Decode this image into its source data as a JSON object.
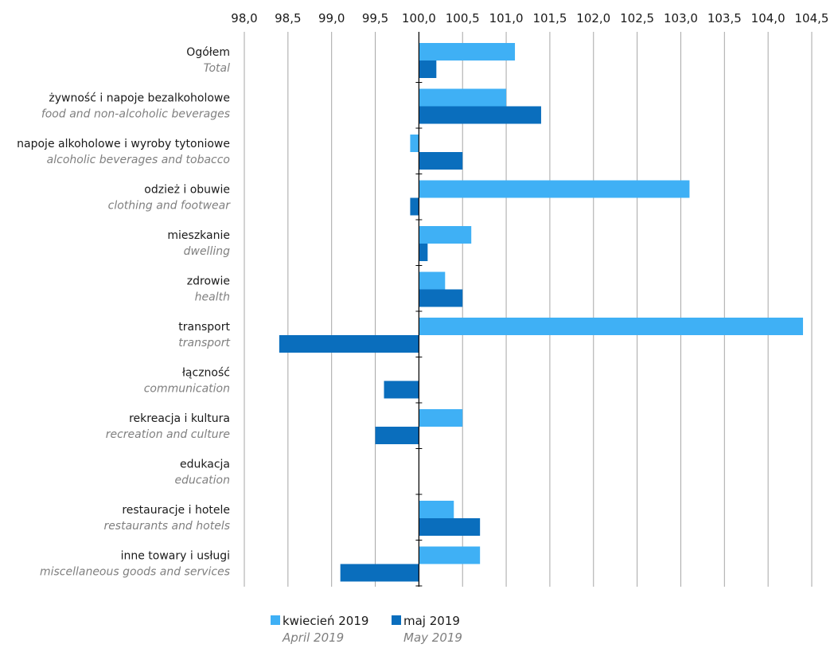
{
  "chart_data": {
    "type": "bar",
    "orientation": "horizontal",
    "baseline": 100,
    "xlim": [
      98.0,
      104.5
    ],
    "ticks": [
      "98,0",
      "98,5",
      "99,0",
      "99,5",
      "100,0",
      "100,5",
      "101,0",
      "101,5",
      "102,0",
      "102,5",
      "103,0",
      "103,5",
      "104,0",
      "104,5"
    ],
    "tick_values": [
      98.0,
      98.5,
      99.0,
      99.5,
      100.0,
      100.5,
      101.0,
      101.5,
      102.0,
      102.5,
      103.0,
      103.5,
      104.0,
      104.5
    ],
    "grid": true,
    "categories": [
      {
        "pl": "Ogółem",
        "en": "Total"
      },
      {
        "pl": "żywność i napoje bezalkoholowe",
        "en": "food and non-alcoholic beverages"
      },
      {
        "pl": "napoje alkoholowe i wyroby tytoniowe",
        "en": "alcoholic beverages and tobacco"
      },
      {
        "pl": "odzież i obuwie",
        "en": "clothing and footwear"
      },
      {
        "pl": "mieszkanie",
        "en": "dwelling"
      },
      {
        "pl": "zdrowie",
        "en": "health"
      },
      {
        "pl": "transport",
        "en": "transport"
      },
      {
        "pl": "łączność",
        "en": "communication"
      },
      {
        "pl": "rekreacja i kultura",
        "en": "recreation and culture"
      },
      {
        "pl": "edukacja",
        "en": "education"
      },
      {
        "pl": "restauracje i hotele",
        "en": "restaurants and hotels"
      },
      {
        "pl": "inne towary i usługi",
        "en": "miscellaneous goods and services"
      }
    ],
    "series": [
      {
        "name": "kwiecień 2019",
        "name_en": "April 2019",
        "color": "#3fb0f5",
        "values": [
          101.1,
          101.0,
          99.9,
          103.1,
          100.6,
          100.3,
          104.4,
          100.0,
          100.5,
          100.0,
          100.4,
          100.7
        ]
      },
      {
        "name": "maj 2019",
        "name_en": "May 2019",
        "color": "#0a6ebd",
        "values": [
          100.2,
          101.4,
          100.5,
          99.9,
          100.1,
          100.5,
          98.4,
          99.6,
          99.5,
          100.0,
          100.7,
          99.1
        ]
      }
    ],
    "legend_position": "bottom-center"
  }
}
